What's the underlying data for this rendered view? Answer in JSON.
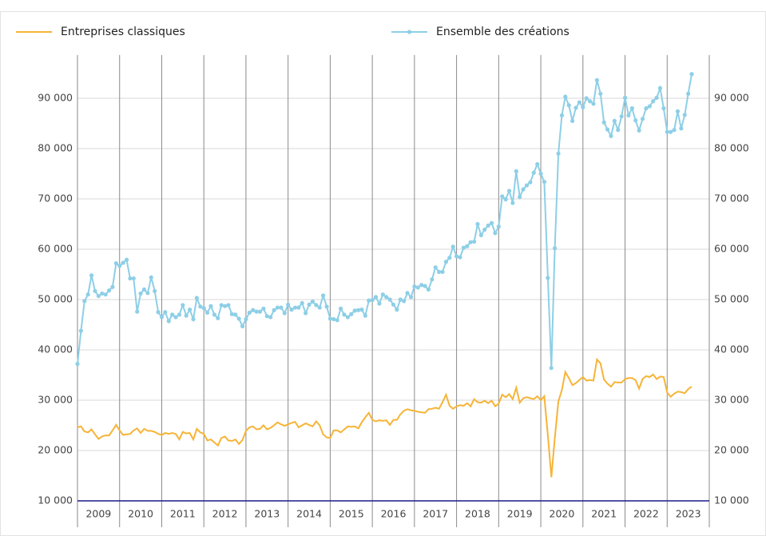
{
  "chart_data": {
    "type": "line",
    "x": [
      2009,
      2009.083,
      2009.167,
      2009.25,
      2009.333,
      2009.417,
      2009.5,
      2009.583,
      2009.667,
      2009.75,
      2009.833,
      2009.917,
      2010,
      2010.083,
      2010.167,
      2010.25,
      2010.333,
      2010.417,
      2010.5,
      2010.583,
      2010.667,
      2010.75,
      2010.833,
      2010.917,
      2011,
      2011.083,
      2011.167,
      2011.25,
      2011.333,
      2011.417,
      2011.5,
      2011.583,
      2011.667,
      2011.75,
      2011.833,
      2011.917,
      2012,
      2012.083,
      2012.167,
      2012.25,
      2012.333,
      2012.417,
      2012.5,
      2012.583,
      2012.667,
      2012.75,
      2012.833,
      2012.917,
      2013,
      2013.083,
      2013.167,
      2013.25,
      2013.333,
      2013.417,
      2013.5,
      2013.583,
      2013.667,
      2013.75,
      2013.833,
      2013.917,
      2014,
      2014.083,
      2014.167,
      2014.25,
      2014.333,
      2014.417,
      2014.5,
      2014.583,
      2014.667,
      2014.75,
      2014.833,
      2014.917,
      2015,
      2015.083,
      2015.167,
      2015.25,
      2015.333,
      2015.417,
      2015.5,
      2015.583,
      2015.667,
      2015.75,
      2015.833,
      2015.917,
      2016,
      2016.083,
      2016.167,
      2016.25,
      2016.333,
      2016.417,
      2016.5,
      2016.583,
      2016.667,
      2016.75,
      2016.833,
      2016.917,
      2017,
      2017.083,
      2017.167,
      2017.25,
      2017.333,
      2017.417,
      2017.5,
      2017.583,
      2017.667,
      2017.75,
      2017.833,
      2017.917,
      2018,
      2018.083,
      2018.167,
      2018.25,
      2018.333,
      2018.417,
      2018.5,
      2018.583,
      2018.667,
      2018.75,
      2018.833,
      2018.917,
      2019,
      2019.083,
      2019.167,
      2019.25,
      2019.333,
      2019.417,
      2019.5,
      2019.583,
      2019.667,
      2019.75,
      2019.833,
      2019.917,
      2020,
      2020.083,
      2020.167,
      2020.25,
      2020.333,
      2020.417,
      2020.5,
      2020.583,
      2020.667,
      2020.75,
      2020.833,
      2020.917,
      2021,
      2021.083,
      2021.167,
      2021.25,
      2021.333,
      2021.417,
      2021.5,
      2021.583,
      2021.667,
      2021.75,
      2021.833,
      2021.917,
      2022,
      2022.083,
      2022.167,
      2022.25,
      2022.333,
      2022.417,
      2022.5,
      2022.583,
      2022.667,
      2022.75,
      2022.833,
      2022.917,
      2023,
      2023.083,
      2023.167,
      2023.25,
      2023.333,
      2023.417,
      2023.5,
      2023.583
    ],
    "series": [
      {
        "name": "Entreprises classiques",
        "color": "#f6b437",
        "markers": false,
        "values": [
          24600,
          24800,
          23800,
          23600,
          24200,
          23200,
          22300,
          22800,
          23000,
          23000,
          24000,
          25100,
          24000,
          23100,
          23200,
          23300,
          24000,
          24400,
          23500,
          24300,
          23900,
          23900,
          23700,
          23300,
          23100,
          23500,
          23300,
          23500,
          23300,
          22200,
          23700,
          23400,
          23500,
          22200,
          24300,
          23600,
          23300,
          22000,
          22200,
          21600,
          21000,
          22500,
          22800,
          22000,
          21900,
          22200,
          21300,
          22100,
          23900,
          24600,
          24800,
          24200,
          24300,
          25000,
          24200,
          24500,
          25000,
          25600,
          25200,
          24900,
          25200,
          25500,
          25700,
          24600,
          25000,
          25400,
          25100,
          24800,
          25800,
          25000,
          23200,
          22600,
          22500,
          24000,
          24000,
          23600,
          24200,
          24800,
          24700,
          24800,
          24400,
          25600,
          26600,
          27500,
          26100,
          25800,
          26000,
          25900,
          26000,
          25100,
          26100,
          26100,
          27200,
          27900,
          28200,
          28000,
          27900,
          27700,
          27600,
          27500,
          28200,
          28300,
          28500,
          28300,
          29600,
          31100,
          28900,
          28300,
          28800,
          29000,
          28900,
          29400,
          28800,
          30200,
          29600,
          29500,
          29900,
          29400,
          29900,
          28800,
          29300,
          31100,
          30600,
          31200,
          30200,
          32500,
          29500,
          30400,
          30600,
          30400,
          30200,
          30800,
          30000,
          30800,
          23000,
          14700,
          22500,
          29800,
          32000,
          35600,
          34400,
          33000,
          33400,
          34000,
          34600,
          33900,
          34000,
          33900,
          38100,
          37300,
          34100,
          33300,
          32700,
          33600,
          33500,
          33500,
          34200,
          34400,
          34400,
          34000,
          32300,
          34200,
          34800,
          34600,
          35100,
          34200,
          34700,
          34600,
          31500,
          30700,
          31300,
          31700,
          31600,
          31400,
          32200,
          32700
        ]
      },
      {
        "name": "Ensemble des créations",
        "color": "#8dcfe6",
        "markers": true,
        "values": [
          37200,
          43800,
          49700,
          51000,
          54800,
          51700,
          50700,
          51200,
          51000,
          51800,
          52500,
          57200,
          56700,
          57300,
          57900,
          54200,
          54200,
          47600,
          51200,
          52000,
          51300,
          54400,
          51700,
          47500,
          46500,
          47500,
          45700,
          47000,
          46500,
          47000,
          48900,
          46800,
          48000,
          46100,
          50300,
          48600,
          48300,
          47400,
          48700,
          47000,
          46300,
          48900,
          48700,
          48900,
          47100,
          47000,
          46200,
          44700,
          46100,
          47400,
          47900,
          47600,
          47600,
          48200,
          46700,
          46500,
          47900,
          48400,
          48400,
          47300,
          49000,
          48000,
          48400,
          48400,
          49300,
          47300,
          49000,
          49600,
          48900,
          48400,
          50800,
          48600,
          46200,
          46100,
          45900,
          48200,
          47000,
          46500,
          47100,
          47800,
          47900,
          48000,
          46800,
          49800,
          49900,
          50500,
          49200,
          51000,
          50500,
          50000,
          49000,
          48000,
          50000,
          49700,
          51300,
          50500,
          52600,
          52400,
          52900,
          52700,
          52000,
          54000,
          56400,
          55500,
          55500,
          57500,
          58300,
          60500,
          58600,
          58400,
          60300,
          60600,
          61400,
          61500,
          65000,
          62800,
          63900,
          64700,
          65200,
          63200,
          64500,
          70500,
          69900,
          71600,
          69200,
          75500,
          70400,
          71900,
          72700,
          73300,
          75200,
          76900,
          75000,
          73400,
          54300,
          36400,
          60200,
          79000,
          86600,
          90300,
          88600,
          85500,
          88100,
          89200,
          88200,
          90000,
          89400,
          88900,
          93600,
          90900,
          85200,
          83800,
          82500,
          85500,
          83700,
          86400,
          90100,
          86600,
          88000,
          85600,
          83600,
          85900,
          88000,
          88400,
          89400,
          90100,
          92000,
          88000,
          83300,
          83300,
          83700,
          87400,
          84000,
          86700,
          90900,
          94800
        ]
      }
    ],
    "xlim": [
      2009,
      2024
    ],
    "xticks": [
      {
        "value": 2009.5,
        "label": "2009"
      },
      {
        "value": 2010.5,
        "label": "2010"
      },
      {
        "value": 2011.5,
        "label": "2011"
      },
      {
        "value": 2012.5,
        "label": "2012"
      },
      {
        "value": 2013.5,
        "label": "2013"
      },
      {
        "value": 2014.5,
        "label": "2014"
      },
      {
        "value": 2015.5,
        "label": "2015"
      },
      {
        "value": 2016.5,
        "label": "2016"
      },
      {
        "value": 2017.5,
        "label": "2017"
      },
      {
        "value": 2018.5,
        "label": "2018"
      },
      {
        "value": 2019.5,
        "label": "2019"
      },
      {
        "value": 2020.5,
        "label": "2020"
      },
      {
        "value": 2021.5,
        "label": "2021"
      },
      {
        "value": 2022.5,
        "label": "2022"
      },
      {
        "value": 2023.5,
        "label": "2023"
      }
    ],
    "ylim": [
      10000,
      97000
    ],
    "yticks": [
      {
        "value": 10000,
        "label": "10 000"
      },
      {
        "value": 20000,
        "label": "20 000"
      },
      {
        "value": 30000,
        "label": "30 000"
      },
      {
        "value": 40000,
        "label": "40 000"
      },
      {
        "value": 50000,
        "label": "50 000"
      },
      {
        "value": 60000,
        "label": "60 000"
      },
      {
        "value": 70000,
        "label": "70 000"
      },
      {
        "value": 80000,
        "label": "80 000"
      },
      {
        "value": 90000,
        "label": "90 000"
      }
    ],
    "grid": true,
    "legend": "top"
  }
}
